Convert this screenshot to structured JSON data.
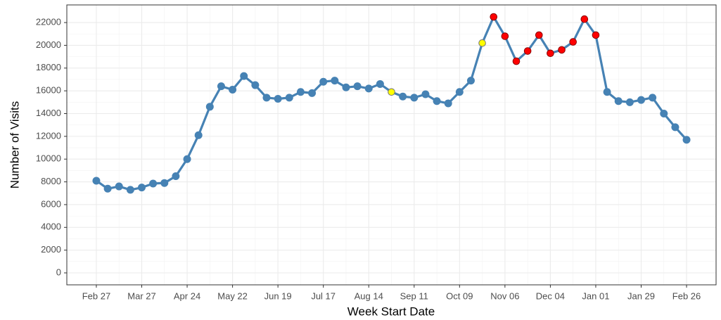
{
  "chart_data": {
    "type": "line",
    "xlabel": "Week Start Date",
    "ylabel": "Number of Visits",
    "categories": [
      "Feb 27",
      null,
      null,
      null,
      "Mar 27",
      null,
      null,
      null,
      "Apr 24",
      null,
      null,
      null,
      "May 22",
      null,
      null,
      null,
      "Jun 19",
      null,
      null,
      null,
      "Jul 17",
      null,
      null,
      null,
      "Aug 14",
      null,
      null,
      null,
      "Sep 11",
      null,
      null,
      null,
      "Oct 09",
      null,
      null,
      null,
      "Nov 06",
      null,
      null,
      null,
      "Dec 04",
      null,
      null,
      null,
      "Jan 01",
      null,
      null,
      null,
      "Jan 29",
      null,
      null,
      null,
      "Feb 26"
    ],
    "series": [
      {
        "color": "#4682b4",
        "values": [
          8100,
          7400,
          7600,
          7300,
          7500,
          7850,
          7900,
          8500,
          10000,
          12100,
          14600,
          16400,
          16100,
          17300,
          16500,
          15400,
          15300,
          15400,
          15900,
          15800,
          16800,
          16900,
          16300,
          16400,
          16200,
          16600,
          15900,
          15500,
          15400,
          15700,
          15100,
          14900,
          15900,
          16900,
          20200,
          22500,
          20800,
          18600,
          19500,
          20900,
          19300,
          19600,
          20300,
          22300,
          20900,
          15900,
          15100,
          15000,
          15200,
          15400,
          14000,
          12800,
          11700
        ],
        "point_colors": [
          "#4682b4",
          "#4682b4",
          "#4682b4",
          "#4682b4",
          "#4682b4",
          "#4682b4",
          "#4682b4",
          "#4682b4",
          "#4682b4",
          "#4682b4",
          "#4682b4",
          "#4682b4",
          "#4682b4",
          "#4682b4",
          "#4682b4",
          "#4682b4",
          "#4682b4",
          "#4682b4",
          "#4682b4",
          "#4682b4",
          "#4682b4",
          "#4682b4",
          "#4682b4",
          "#4682b4",
          "#4682b4",
          "#4682b4",
          "#ffff00",
          "#4682b4",
          "#4682b4",
          "#4682b4",
          "#4682b4",
          "#4682b4",
          "#4682b4",
          "#4682b4",
          "#ffff00",
          "#ff0000",
          "#ff0000",
          "#ff0000",
          "#ff0000",
          "#ff0000",
          "#ff0000",
          "#ff0000",
          "#ff0000",
          "#ff0000",
          "#ff0000",
          "#4682b4",
          "#4682b4",
          "#4682b4",
          "#4682b4",
          "#4682b4",
          "#4682b4",
          "#4682b4",
          "#4682b4"
        ]
      }
    ],
    "ylim": [
      -1050,
      23550
    ],
    "yticks": [
      0,
      2000,
      4000,
      6000,
      8000,
      10000,
      12000,
      14000,
      16000,
      18000,
      20000,
      22000
    ],
    "grid": true
  }
}
